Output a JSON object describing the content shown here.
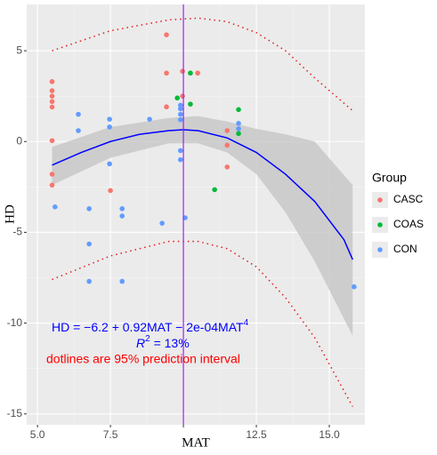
{
  "chart_data": {
    "type": "scatter",
    "xlabel": "MAT",
    "ylabel": "HD",
    "xlim": [
      4.63,
      16.22
    ],
    "ylim": [
      -15.6,
      7.55
    ],
    "xticks": [
      {
        "value": 5,
        "label": "5.0"
      },
      {
        "value": 7.5,
        "label": "7.5"
      },
      {
        "value": 10,
        "label": null
      },
      {
        "value": 12.5,
        "label": "12.5"
      },
      {
        "value": 15,
        "label": "15.0"
      }
    ],
    "yticks": [
      -15,
      -10,
      -5,
      0,
      5
    ],
    "grid": true,
    "legend_title": "Group",
    "legend_position": "right",
    "series": [
      {
        "name": "CASC",
        "color": "#F8766D",
        "x": [
          5.5,
          5.5,
          5.5,
          5.5,
          5.5,
          5.5,
          5.5,
          5.5,
          7.5,
          9.42,
          9.42,
          9.42,
          9.97,
          9.97,
          10.49,
          11.5,
          11.5,
          11.5
        ],
        "values": [
          3.3,
          2.8,
          2.5,
          2.2,
          1.9,
          0.05,
          -1.8,
          -2.4,
          -2.7,
          5.88,
          3.77,
          1.91,
          3.87,
          2.5,
          3.77,
          0.6,
          -0.2,
          -1.4
        ]
      },
      {
        "name": "COAS",
        "color": "#00BA38",
        "x": [
          9.79,
          10.24,
          10.24,
          11.89,
          11.89,
          11.07
        ],
        "values": [
          2.4,
          3.77,
          2.06,
          1.76,
          0.44,
          -2.65
        ]
      },
      {
        "name": "CON",
        "color": "#619CFF",
        "x": [
          5.6,
          6.4,
          6.4,
          7.47,
          7.47,
          7.47,
          6.77,
          7.9,
          7.9,
          6.77,
          6.77,
          7.9,
          8.84,
          9.27,
          10.06,
          9.9,
          9.9,
          9.9,
          9.9,
          9.9,
          9.9,
          11.89,
          11.89,
          15.85
        ],
        "values": [
          -3.6,
          1.5,
          0.6,
          1.23,
          0.8,
          -1.23,
          -3.7,
          -3.7,
          -4.1,
          -5.64,
          -7.7,
          -7.7,
          1.23,
          -4.5,
          -4.2,
          2.0,
          1.8,
          1.5,
          1.2,
          -0.5,
          -1.0,
          1.0,
          0.7,
          -8.0
        ]
      }
    ],
    "fit": {
      "color": "#0000FF",
      "x": [
        5.5,
        6.5,
        7.5,
        8.5,
        9.5,
        10,
        10.5,
        11.5,
        12.5,
        13.5,
        14.5,
        15.5,
        15.8
      ],
      "values": [
        -1.3,
        -0.6,
        0,
        0.4,
        0.6,
        0.65,
        0.6,
        0.2,
        -0.6,
        -1.8,
        -3.3,
        -5.4,
        -6.5
      ]
    },
    "band": {
      "color": "#C8C8C8",
      "x": [
        5.5,
        7.5,
        9.5,
        10.5,
        11.5,
        12.5,
        13.5,
        14.5,
        15.8
      ],
      "lower": [
        -2.4,
        -0.9,
        -0.1,
        -0.1,
        -0.6,
        -1.8,
        -3.9,
        -6.6,
        -10.7
      ],
      "upper": [
        -0.3,
        0.8,
        1.3,
        1.4,
        1.1,
        0.7,
        0.4,
        0,
        -2.4
      ]
    },
    "prediction": {
      "color": "#E41A1C",
      "x": [
        5.5,
        7.5,
        9.5,
        10.5,
        11.5,
        12.5,
        13.5,
        14.5,
        15.8
      ],
      "lower": [
        -7.6,
        -6.3,
        -5.5,
        -5.5,
        -5.9,
        -6.9,
        -8.6,
        -10.8,
        -14.6
      ],
      "upper": [
        5.0,
        6.1,
        6.7,
        6.8,
        6.6,
        6.0,
        5.0,
        3.5,
        1.7
      ]
    },
    "vline": {
      "x": 10,
      "color": "#A020F0"
    },
    "equation": {
      "text": "HD = −6.2 + 0.92MAT − 2e-04MAT",
      "sup": "4",
      "color": "#0000FF"
    },
    "r2": {
      "text": "R",
      "sup": "2",
      "rest": " = 13%",
      "color": "#0000FF"
    },
    "note": {
      "text": "dotlines are 95% prediction interval",
      "color": "#FF0000"
    }
  }
}
